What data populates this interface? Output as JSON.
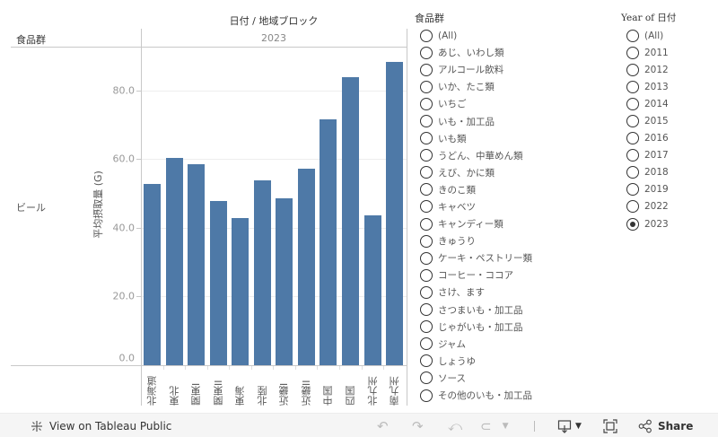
{
  "header": {
    "column_title": "日付 / 地域ブロック",
    "row_header": "食品群",
    "year": "2023"
  },
  "row_label": "ビール",
  "y_axis": {
    "title": "平均摂取量 (G)",
    "ticks": [
      "0.0",
      "20.0",
      "40.0",
      "60.0",
      "80.0"
    ]
  },
  "chart_data": {
    "type": "bar",
    "title": "日付 / 地域ブロック",
    "subtitle": "2023",
    "row": "ビール",
    "xlabel": "地域ブロック",
    "ylabel": "平均摂取量 (G)",
    "categories": [
      "北海道",
      "東北",
      "関東I",
      "関東II",
      "東海",
      "北陸",
      "近畿I",
      "近畿II",
      "中国",
      "四国",
      "北九州",
      "南九州"
    ],
    "values": [
      52.7,
      60.2,
      58.6,
      47.9,
      42.7,
      53.7,
      48.5,
      57.3,
      71.5,
      83.8,
      43.5,
      88.2
    ],
    "ylim": [
      0,
      90
    ],
    "yticks": [
      0,
      20,
      40,
      60,
      80
    ],
    "grid": true,
    "color": "#4e79a7",
    "legend": null
  },
  "filters": {
    "food_group": {
      "title": "食品群",
      "items": [
        "(All)",
        "あじ、いわし類",
        "アルコール飲料",
        "いか、たこ類",
        "いちご",
        "いも・加工品",
        "いも類",
        "うどん、中華めん類",
        "えび、かに類",
        "きのこ類",
        "キャベツ",
        "キャンディー類",
        "きゅうり",
        "ケーキ・ペストリー類",
        "コーヒー・ココア",
        "さけ、ます",
        "さつまいも・加工品",
        "じゃがいも・加工品",
        "ジャム",
        "しょうゆ",
        "ソース",
        "その他のいも・加工品"
      ]
    },
    "year": {
      "title": "Year of 日付",
      "items": [
        "(All)",
        "2011",
        "2012",
        "2013",
        "2014",
        "2015",
        "2016",
        "2017",
        "2018",
        "2019",
        "2022",
        "2023"
      ],
      "selected": "2023"
    }
  },
  "toolbar": {
    "view_on_tableau": "View on Tableau Public",
    "share": "Share",
    "icons": [
      "undo-icon",
      "redo-icon",
      "revert-icon",
      "refresh-icon",
      "download-icon",
      "fullscreen-icon",
      "share-icon"
    ]
  }
}
